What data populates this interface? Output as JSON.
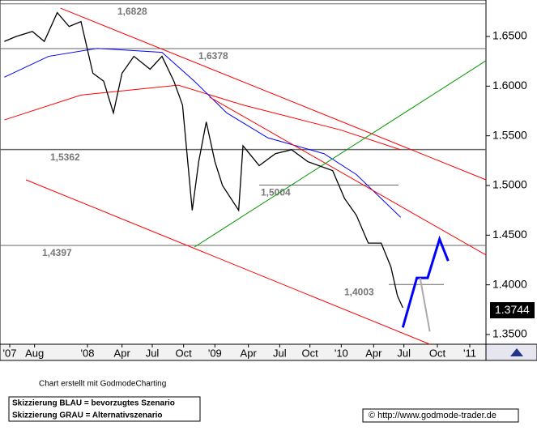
{
  "chart_data": {
    "type": "line",
    "series": [
      {
        "name": "Kurs",
        "color": "#000000",
        "x": [
          4.9,
          6.0,
          7.5,
          8.6,
          9.8,
          10.9,
          12.0,
          13.1,
          14.1,
          15.0,
          15.8,
          16.9,
          18.4,
          19.5,
          20.6,
          21.4,
          22.3,
          22.9,
          23.6,
          24.4,
          25.1,
          26.6,
          27.0,
          28.5,
          30.0,
          31.5,
          33.0,
          35.3,
          36.4,
          37.5,
          38.6,
          39.8,
          40.7,
          41.3,
          41.8
        ],
        "values": [
          1.645,
          1.65,
          1.655,
          1.645,
          1.674,
          1.66,
          1.665,
          1.613,
          1.605,
          1.573,
          1.613,
          1.63,
          1.617,
          1.63,
          1.605,
          1.581,
          1.475,
          1.524,
          1.564,
          1.524,
          1.5,
          1.475,
          1.54,
          1.52,
          1.532,
          1.536,
          1.524,
          1.515,
          1.487,
          1.47,
          1.442,
          1.442,
          1.418,
          1.389,
          1.377
        ]
      }
    ],
    "overlays": [
      {
        "color": "#ff0000",
        "x": [
          4.9,
          12.0,
          21.0,
          27.0,
          36.0,
          41.6
        ],
        "values": [
          1.566,
          1.591,
          1.601,
          1.581,
          1.556,
          1.536
        ]
      },
      {
        "color": "#0000ff",
        "x": [
          4.9,
          9.0,
          13.5,
          19.5,
          22.5,
          25.5,
          29.3,
          34.5,
          37.5,
          41.6
        ],
        "values": [
          1.609,
          1.63,
          1.638,
          1.634,
          1.605,
          1.573,
          1.548,
          1.532,
          1.511,
          1.468
        ]
      },
      {
        "color": "#ff0000",
        "x": [
          10.1,
          49.5
        ],
        "values": [
          1.6785,
          1.5057
        ]
      },
      {
        "color": "#ff0000",
        "x": [
          6.9,
          44.3
        ],
        "values": [
          1.5057,
          1.3402
        ]
      },
      {
        "color": "#ff0000",
        "x": [
          23.9,
          49.5
        ],
        "values": [
          1.589,
          1.43
        ]
      },
      {
        "color": "#009900",
        "x": [
          22.5,
          49.5
        ],
        "values": [
          1.438,
          1.6256
        ]
      },
      {
        "color": "#0000ff",
        "x": [
          41.8,
          43.1,
          44.1,
          45.2,
          46.0
        ],
        "values": [
          1.357,
          1.407,
          1.407,
          1.446,
          1.424
        ]
      },
      {
        "color": "#aaaaaa",
        "x": [
          43.4,
          44.3
        ],
        "values": [
          1.407,
          1.353
        ]
      }
    ],
    "levels": [
      {
        "value": 1.6828,
        "label": "1,6828"
      },
      {
        "value": 1.6378,
        "label": "1,6378"
      },
      {
        "value": 1.5362,
        "label": "1,5362"
      },
      {
        "value": 1.5004,
        "label": "1,5004"
      },
      {
        "value": 1.4397,
        "label": "1,4397"
      },
      {
        "value": 1.4003,
        "label": "1,4003"
      }
    ],
    "last_price": 1.3744,
    "xlim": [
      4.5,
      49.5
    ],
    "ylim": [
      1.3402,
      1.6867
    ],
    "xticks": [
      {
        "value": 5.4,
        "label": "'07"
      },
      {
        "value": 7.7,
        "label": "Aug"
      },
      {
        "value": 12.6,
        "label": "'08"
      },
      {
        "value": 15.8,
        "label": "Apr"
      },
      {
        "value": 18.6,
        "label": "Jul"
      },
      {
        "value": 21.5,
        "label": "Oct"
      },
      {
        "value": 24.4,
        "label": "'09"
      },
      {
        "value": 27.5,
        "label": "Apr"
      },
      {
        "value": 30.4,
        "label": "Jul"
      },
      {
        "value": 33.2,
        "label": "Oct"
      },
      {
        "value": 36.1,
        "label": "'10"
      },
      {
        "value": 39.1,
        "label": "Apr"
      },
      {
        "value": 41.9,
        "label": "Jul"
      },
      {
        "value": 45.0,
        "label": "Oct"
      },
      {
        "value": 48.0,
        "label": "'11"
      }
    ],
    "yticks": [
      {
        "value": 1.35,
        "label": "1.3500"
      },
      {
        "value": 1.4,
        "label": "1.4000"
      },
      {
        "value": 1.45,
        "label": "1.4500"
      },
      {
        "value": 1.5,
        "label": "1.5000"
      },
      {
        "value": 1.55,
        "label": "1.5500"
      },
      {
        "value": 1.6,
        "label": "1.6000"
      },
      {
        "value": 1.65,
        "label": "1.6500"
      }
    ],
    "credit": "Chart erstellt mit GodmodeCharting",
    "legend_lines": [
      "Skizzierung BLAU = bevorzugtes Szenario",
      "Skizzierung GRAU = Alternativszenario"
    ],
    "url": "© http://www.godmode-trader.de"
  }
}
